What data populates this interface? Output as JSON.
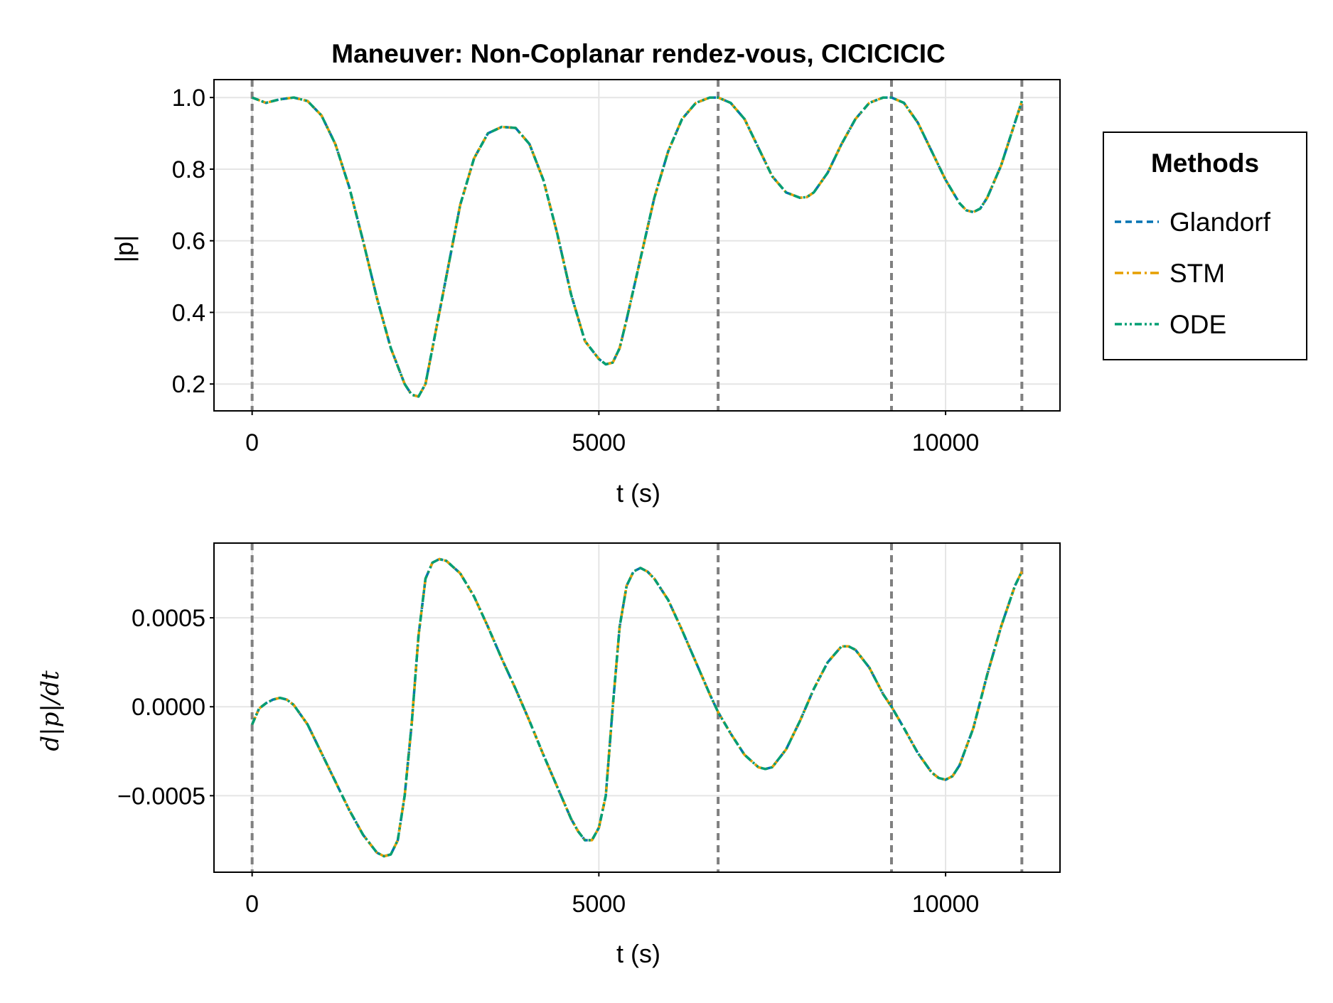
{
  "figure": {
    "title": "Maneuver: Non-Coplanar rendez-vous, CICICICIC"
  },
  "legend": {
    "title": "Methods",
    "items": [
      {
        "label": "Glandorf",
        "color": "#0072b2",
        "dash": "dash"
      },
      {
        "label": "STM",
        "color": "#e69f00",
        "dash": "dashdot"
      },
      {
        "label": "ODE",
        "color": "#009e73",
        "dash": "dashdotdot"
      }
    ]
  },
  "colors": {
    "vline": "#808080",
    "grid": "#e5e5e5",
    "axes": "#000000"
  },
  "chart_data": [
    {
      "type": "line",
      "title": "Maneuver: Non-Coplanar rendez-vous, CICICICIC",
      "xlabel": "t (s)",
      "ylabel": "|p|",
      "xlim": [
        -550,
        11650
      ],
      "ylim": [
        0.125,
        1.05
      ],
      "xticks": [
        0,
        5000,
        10000
      ],
      "xtick_labels": [
        "0",
        "5000",
        "10000"
      ],
      "yticks": [
        0.2,
        0.4,
        0.6,
        0.8,
        1.0
      ],
      "ytick_labels": [
        "0.2",
        "0.4",
        "0.6",
        "0.8",
        "1.0"
      ],
      "grid": true,
      "vlines": [
        0,
        6720,
        9220,
        11100
      ],
      "x": [
        0,
        200,
        400,
        600,
        800,
        1000,
        1200,
        1400,
        1600,
        1800,
        2000,
        2200,
        2300,
        2400,
        2500,
        2600,
        2800,
        3000,
        3200,
        3400,
        3600,
        3800,
        4000,
        4200,
        4400,
        4600,
        4800,
        5000,
        5100,
        5200,
        5300,
        5400,
        5600,
        5800,
        6000,
        6200,
        6400,
        6600,
        6720,
        6900,
        7100,
        7300,
        7500,
        7700,
        7900,
        8000,
        8100,
        8300,
        8500,
        8700,
        8900,
        9100,
        9220,
        9400,
        9600,
        9800,
        10000,
        10200,
        10300,
        10400,
        10500,
        10600,
        10800,
        11000,
        11100
      ],
      "series": [
        {
          "name": "Glandorf",
          "values": [
            1.0,
            0.985,
            0.995,
            1.0,
            0.99,
            0.95,
            0.87,
            0.75,
            0.6,
            0.44,
            0.3,
            0.2,
            0.17,
            0.165,
            0.2,
            0.3,
            0.5,
            0.7,
            0.83,
            0.9,
            0.918,
            0.915,
            0.87,
            0.77,
            0.62,
            0.45,
            0.32,
            0.27,
            0.255,
            0.26,
            0.3,
            0.38,
            0.55,
            0.72,
            0.85,
            0.94,
            0.985,
            1.0,
            1.0,
            0.985,
            0.94,
            0.86,
            0.78,
            0.735,
            0.72,
            0.722,
            0.735,
            0.79,
            0.87,
            0.94,
            0.985,
            1.0,
            1.0,
            0.985,
            0.93,
            0.85,
            0.77,
            0.705,
            0.685,
            0.68,
            0.69,
            0.72,
            0.81,
            0.93,
            0.99
          ]
        },
        {
          "name": "STM",
          "values": [
            1.0,
            0.985,
            0.995,
            1.0,
            0.99,
            0.95,
            0.87,
            0.75,
            0.6,
            0.44,
            0.3,
            0.2,
            0.17,
            0.165,
            0.2,
            0.3,
            0.5,
            0.7,
            0.83,
            0.9,
            0.918,
            0.915,
            0.87,
            0.77,
            0.62,
            0.45,
            0.32,
            0.27,
            0.255,
            0.26,
            0.3,
            0.38,
            0.55,
            0.72,
            0.85,
            0.94,
            0.985,
            1.0,
            1.0,
            0.985,
            0.94,
            0.86,
            0.78,
            0.735,
            0.72,
            0.722,
            0.735,
            0.79,
            0.87,
            0.94,
            0.985,
            1.0,
            1.0,
            0.985,
            0.93,
            0.85,
            0.77,
            0.705,
            0.685,
            0.68,
            0.69,
            0.72,
            0.81,
            0.93,
            0.99
          ]
        },
        {
          "name": "ODE",
          "values": [
            1.0,
            0.985,
            0.995,
            1.0,
            0.99,
            0.95,
            0.87,
            0.75,
            0.6,
            0.44,
            0.3,
            0.2,
            0.17,
            0.165,
            0.2,
            0.3,
            0.5,
            0.7,
            0.83,
            0.9,
            0.918,
            0.915,
            0.87,
            0.77,
            0.62,
            0.45,
            0.32,
            0.27,
            0.255,
            0.26,
            0.3,
            0.38,
            0.55,
            0.72,
            0.85,
            0.94,
            0.985,
            1.0,
            1.0,
            0.985,
            0.94,
            0.86,
            0.78,
            0.735,
            0.72,
            0.722,
            0.735,
            0.79,
            0.87,
            0.94,
            0.985,
            1.0,
            1.0,
            0.985,
            0.93,
            0.85,
            0.77,
            0.705,
            0.685,
            0.68,
            0.69,
            0.72,
            0.81,
            0.93,
            0.99
          ]
        }
      ]
    },
    {
      "type": "line",
      "title": "",
      "xlabel": "t (s)",
      "ylabel": "d|p|/dt",
      "xlim": [
        -550,
        11650
      ],
      "ylim": [
        -0.00093,
        0.00092
      ],
      "xticks": [
        0,
        5000,
        10000
      ],
      "xtick_labels": [
        "0",
        "5000",
        "10000"
      ],
      "yticks": [
        -0.0005,
        0.0,
        0.0005
      ],
      "ytick_labels": [
        "−0.0005",
        "0.0000",
        "0.0005"
      ],
      "grid": true,
      "vlines": [
        0,
        6720,
        9220,
        11100
      ],
      "x": [
        0,
        100,
        200,
        300,
        400,
        500,
        600,
        800,
        1000,
        1200,
        1400,
        1600,
        1800,
        1900,
        2000,
        2100,
        2200,
        2300,
        2400,
        2500,
        2600,
        2700,
        2800,
        3000,
        3200,
        3400,
        3600,
        3800,
        4000,
        4200,
        4400,
        4600,
        4700,
        4800,
        4900,
        5000,
        5100,
        5200,
        5300,
        5400,
        5500,
        5600,
        5700,
        5800,
        6000,
        6200,
        6400,
        6600,
        6720,
        6900,
        7100,
        7300,
        7400,
        7500,
        7700,
        7900,
        8100,
        8300,
        8500,
        8600,
        8700,
        8900,
        9100,
        9220,
        9400,
        9600,
        9800,
        9900,
        10000,
        10100,
        10200,
        10400,
        10600,
        10800,
        11000,
        11100
      ],
      "series": [
        {
          "name": "Glandorf",
          "values": [
            -0.0001,
            -1e-05,
            2e-05,
            4e-05,
            5e-05,
            4e-05,
            1e-05,
            -0.0001,
            -0.00026,
            -0.00042,
            -0.00058,
            -0.00072,
            -0.00082,
            -0.00084,
            -0.00083,
            -0.00075,
            -0.0005,
            -0.0001,
            0.0004,
            0.00072,
            0.00081,
            0.00083,
            0.00082,
            0.00075,
            0.00062,
            0.00045,
            0.00027,
            0.0001,
            -8e-05,
            -0.00027,
            -0.00045,
            -0.00063,
            -0.0007,
            -0.00075,
            -0.00075,
            -0.00068,
            -0.0005,
            0.0,
            0.00045,
            0.00068,
            0.00076,
            0.00078,
            0.00076,
            0.00072,
            0.0006,
            0.00043,
            0.00025,
            7e-05,
            -3e-05,
            -0.00015,
            -0.00027,
            -0.00034,
            -0.00035,
            -0.00034,
            -0.00024,
            -8e-05,
            0.0001,
            0.00025,
            0.00034,
            0.00034,
            0.00032,
            0.00022,
            7e-05,
            0.0,
            -0.00012,
            -0.00026,
            -0.00037,
            -0.0004,
            -0.00041,
            -0.00039,
            -0.00033,
            -0.00012,
            0.00018,
            0.00045,
            0.00068,
            0.00076
          ]
        },
        {
          "name": "STM",
          "values": [
            -0.0001,
            -1e-05,
            2e-05,
            4e-05,
            5e-05,
            4e-05,
            1e-05,
            -0.0001,
            -0.00026,
            -0.00042,
            -0.00058,
            -0.00072,
            -0.00082,
            -0.00084,
            -0.00083,
            -0.00075,
            -0.0005,
            -0.0001,
            0.0004,
            0.00072,
            0.00081,
            0.00083,
            0.00082,
            0.00075,
            0.00062,
            0.00045,
            0.00027,
            0.0001,
            -8e-05,
            -0.00027,
            -0.00045,
            -0.00063,
            -0.0007,
            -0.00075,
            -0.00075,
            -0.00068,
            -0.0005,
            0.0,
            0.00045,
            0.00068,
            0.00076,
            0.00078,
            0.00076,
            0.00072,
            0.0006,
            0.00043,
            0.00025,
            7e-05,
            -3e-05,
            -0.00015,
            -0.00027,
            -0.00034,
            -0.00035,
            -0.00034,
            -0.00024,
            -8e-05,
            0.0001,
            0.00025,
            0.00034,
            0.00034,
            0.00032,
            0.00022,
            7e-05,
            0.0,
            -0.00012,
            -0.00026,
            -0.00037,
            -0.0004,
            -0.00041,
            -0.00039,
            -0.00033,
            -0.00012,
            0.00018,
            0.00045,
            0.00068,
            0.00076
          ]
        },
        {
          "name": "ODE",
          "values": [
            -0.0001,
            -1e-05,
            2e-05,
            4e-05,
            5e-05,
            4e-05,
            1e-05,
            -0.0001,
            -0.00026,
            -0.00042,
            -0.00058,
            -0.00072,
            -0.00082,
            -0.00084,
            -0.00083,
            -0.00075,
            -0.0005,
            -0.0001,
            0.0004,
            0.00072,
            0.00081,
            0.00083,
            0.00082,
            0.00075,
            0.00062,
            0.00045,
            0.00027,
            0.0001,
            -8e-05,
            -0.00027,
            -0.00045,
            -0.00063,
            -0.0007,
            -0.00075,
            -0.00075,
            -0.00068,
            -0.0005,
            0.0,
            0.00045,
            0.00068,
            0.00076,
            0.00078,
            0.00076,
            0.00072,
            0.0006,
            0.00043,
            0.00025,
            7e-05,
            -3e-05,
            -0.00015,
            -0.00027,
            -0.00034,
            -0.00035,
            -0.00034,
            -0.00024,
            -8e-05,
            0.0001,
            0.00025,
            0.00034,
            0.00034,
            0.00032,
            0.00022,
            7e-05,
            0.0,
            -0.00012,
            -0.00026,
            -0.00037,
            -0.0004,
            -0.00041,
            -0.00039,
            -0.00033,
            -0.00012,
            0.00018,
            0.00045,
            0.00068,
            0.00076
          ]
        }
      ]
    }
  ]
}
